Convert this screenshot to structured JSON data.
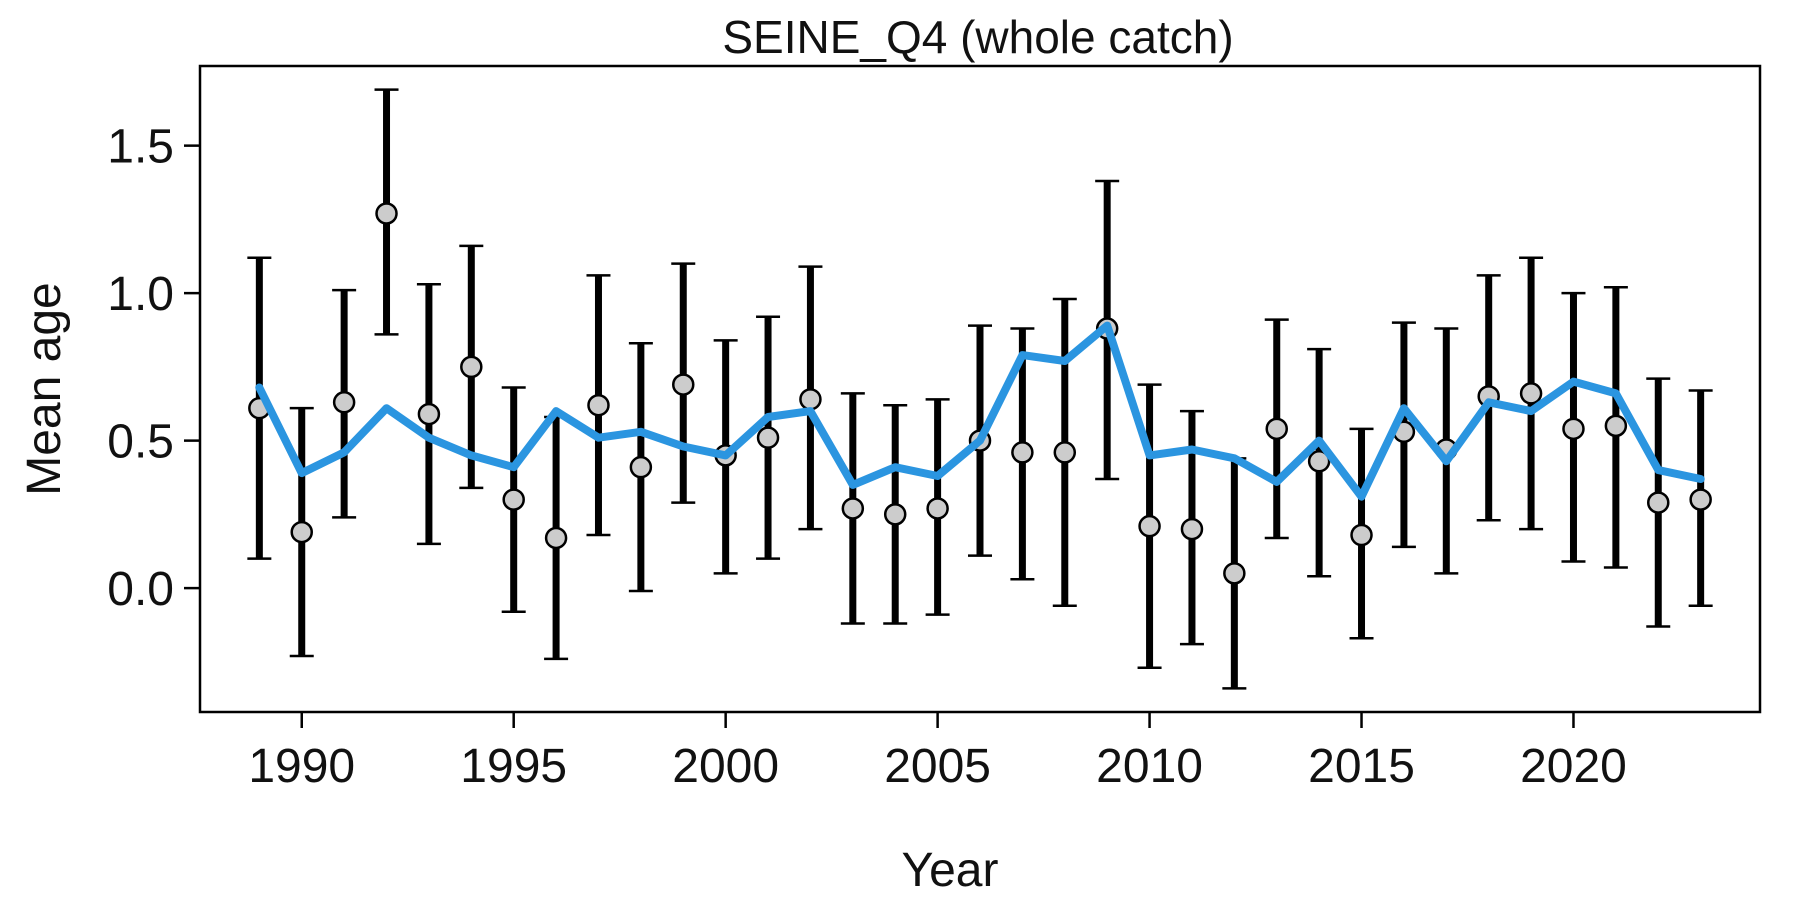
{
  "chart_data": {
    "type": "scatter",
    "title": "SEINE_Q4 (whole catch)",
    "xlabel": "Year",
    "ylabel": "Mean age",
    "xlim": [
      1987.6,
      2024.4
    ],
    "ylim": [
      -0.42,
      1.77
    ],
    "xticks": [
      "1990",
      "1995",
      "2000",
      "2005",
      "2010",
      "2015",
      "2020"
    ],
    "yticks": [
      "0.0",
      "0.5",
      "1.0",
      "1.5"
    ],
    "grid": false,
    "legend": "none",
    "colors": {
      "expected_line": "#2b95e0",
      "point_fill": "#cccccc",
      "point_stroke": "#000000",
      "error_bar": "#000000"
    },
    "series": [
      {
        "kind": "observed-with-error-bars",
        "x": [
          1989,
          1990,
          1991,
          1992,
          1993,
          1994,
          1995,
          1996,
          1997,
          1998,
          1999,
          2000,
          2001,
          2002,
          2003,
          2004,
          2005,
          2006,
          2007,
          2008,
          2009,
          2010,
          2011,
          2012,
          2013,
          2014,
          2015,
          2016,
          2017,
          2018,
          2019,
          2020,
          2021,
          2022,
          2023
        ],
        "y": [
          0.61,
          0.19,
          0.63,
          1.27,
          0.59,
          0.75,
          0.3,
          0.17,
          0.62,
          0.41,
          0.69,
          0.45,
          0.51,
          0.64,
          0.27,
          0.25,
          0.27,
          0.5,
          0.46,
          0.46,
          0.88,
          0.21,
          0.2,
          0.05,
          0.54,
          0.43,
          0.18,
          0.53,
          0.47,
          0.65,
          0.66,
          0.54,
          0.55,
          0.29,
          0.3
        ],
        "lower": [
          0.1,
          -0.23,
          0.24,
          0.86,
          0.15,
          0.34,
          -0.08,
          -0.24,
          0.18,
          -0.01,
          0.29,
          0.05,
          0.1,
          0.2,
          -0.12,
          -0.12,
          -0.09,
          0.11,
          0.03,
          -0.06,
          0.37,
          -0.27,
          -0.19,
          -0.34,
          0.17,
          0.04,
          -0.17,
          0.14,
          0.05,
          0.23,
          0.2,
          0.09,
          0.07,
          -0.13,
          -0.06
        ],
        "upper": [
          1.12,
          0.61,
          1.01,
          1.69,
          1.03,
          1.16,
          0.68,
          0.58,
          1.06,
          0.83,
          1.1,
          0.84,
          0.92,
          1.09,
          0.66,
          0.62,
          0.64,
          0.89,
          0.88,
          0.98,
          1.38,
          0.69,
          0.6,
          0.44,
          0.91,
          0.81,
          0.54,
          0.9,
          0.88,
          1.06,
          1.12,
          1.0,
          1.02,
          0.71,
          0.67
        ]
      },
      {
        "kind": "expected-line",
        "x": [
          1989,
          1990,
          1991,
          1992,
          1993,
          1994,
          1995,
          1996,
          1997,
          1998,
          1999,
          2000,
          2001,
          2002,
          2003,
          2004,
          2005,
          2006,
          2007,
          2008,
          2009,
          2010,
          2011,
          2012,
          2013,
          2014,
          2015,
          2016,
          2017,
          2018,
          2019,
          2020,
          2021,
          2022,
          2023
        ],
        "y": [
          0.68,
          0.39,
          0.46,
          0.61,
          0.51,
          0.45,
          0.41,
          0.6,
          0.51,
          0.53,
          0.48,
          0.45,
          0.58,
          0.6,
          0.35,
          0.41,
          0.38,
          0.5,
          0.79,
          0.77,
          0.89,
          0.45,
          0.47,
          0.44,
          0.36,
          0.5,
          0.31,
          0.61,
          0.43,
          0.63,
          0.6,
          0.7,
          0.66,
          0.4,
          0.37
        ]
      }
    ]
  }
}
